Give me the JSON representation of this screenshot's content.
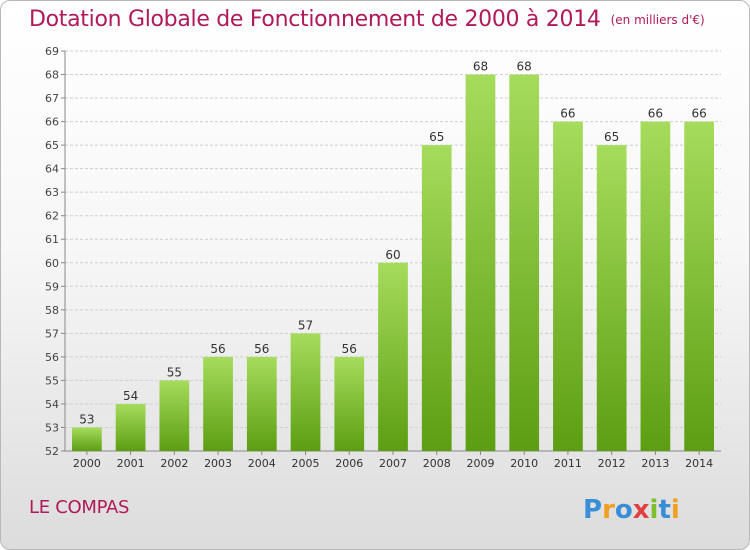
{
  "header": {
    "title": "Dotation Globale de Fonctionnement de 2000 à 2014",
    "unit": "(en milliers d'€)"
  },
  "footer": {
    "commune": "LE COMPAS",
    "brand": "Proxiti"
  },
  "colors": {
    "title": "#b0195a",
    "bar_light": "#a6dc5c",
    "bar_dark": "#5c9e12",
    "grid": "#cfcfcf"
  },
  "chart_data": {
    "type": "bar",
    "title": "Dotation Globale de Fonctionnement de 2000 à 2014",
    "subtitle": "(en milliers d'€)",
    "xlabel": "",
    "ylabel": "",
    "categories": [
      "2000",
      "2001",
      "2002",
      "2003",
      "2004",
      "2005",
      "2006",
      "2007",
      "2008",
      "2009",
      "2010",
      "2011",
      "2012",
      "2013",
      "2014"
    ],
    "values": [
      53,
      54,
      55,
      56,
      56,
      57,
      56,
      60,
      65,
      68,
      68,
      66,
      65,
      66,
      66
    ],
    "ylim": [
      52,
      69
    ],
    "ytick_step": 1,
    "grid": true,
    "data_labels": true
  }
}
